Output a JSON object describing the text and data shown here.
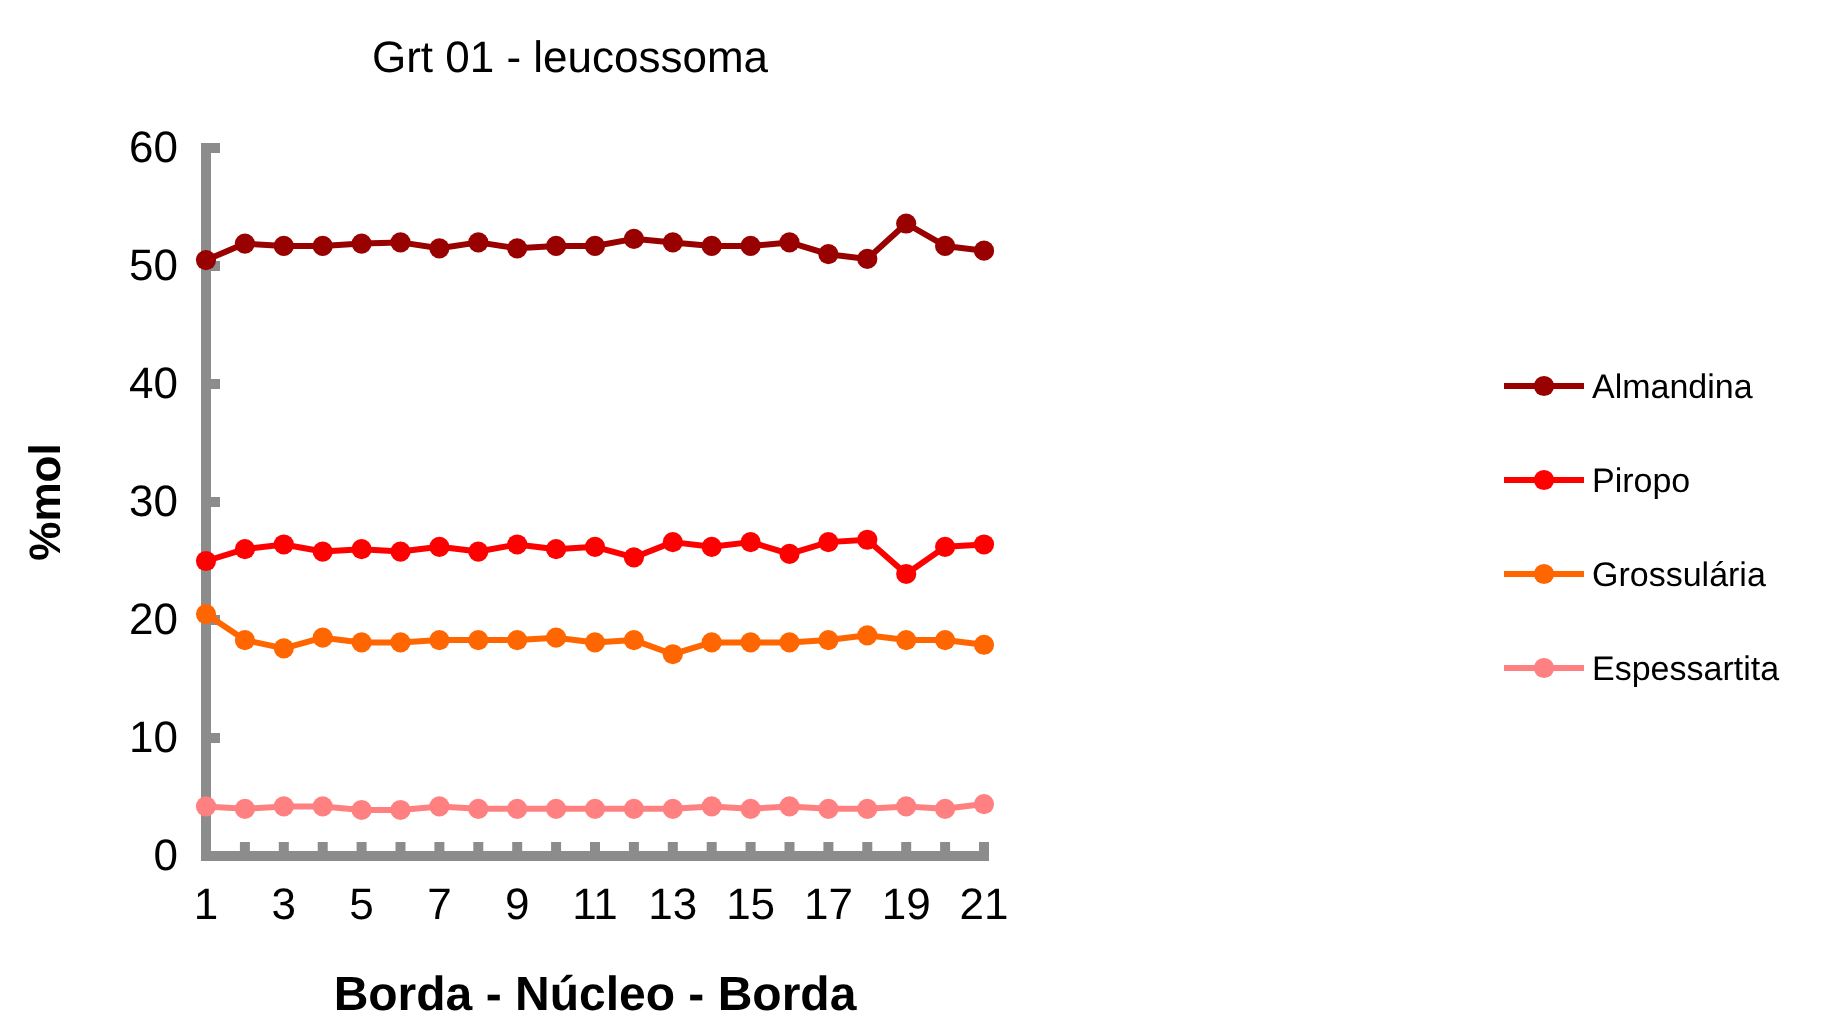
{
  "chart_data": {
    "type": "line",
    "title": "Grt 01 - leucossoma",
    "xlabel": "Borda - Núcleo - Borda",
    "ylabel": "%mol",
    "x": [
      1,
      2,
      3,
      4,
      5,
      6,
      7,
      8,
      9,
      10,
      11,
      12,
      13,
      14,
      15,
      16,
      17,
      18,
      19,
      20,
      21
    ],
    "xlim": [
      1,
      21
    ],
    "xticks": [
      1,
      {
        "value": 2,
        "label": null
      },
      3,
      {
        "value": 4,
        "label": null
      },
      5,
      {
        "value": 6,
        "label": null
      },
      7,
      {
        "value": 8,
        "label": null
      },
      9,
      {
        "value": 10,
        "label": null
      },
      11,
      {
        "value": 12,
        "label": null
      },
      13,
      {
        "value": 14,
        "label": null
      },
      15,
      {
        "value": 16,
        "label": null
      },
      17,
      {
        "value": 18,
        "label": null
      },
      19,
      {
        "value": 20,
        "label": null
      },
      21
    ],
    "ylim": [
      0,
      60
    ],
    "yticks": [
      0,
      10,
      20,
      30,
      40,
      50,
      60
    ],
    "grid": false,
    "legend": "right",
    "marker": "circle",
    "line_style": "solid",
    "series": [
      {
        "name": "Almandina",
        "color": "#990000",
        "values": [
          50.5,
          51.9,
          51.7,
          51.7,
          51.9,
          52.0,
          51.5,
          52.0,
          51.5,
          51.7,
          51.7,
          52.3,
          52.0,
          51.7,
          51.7,
          52.0,
          51.0,
          50.6,
          53.6,
          51.7,
          51.3
        ]
      },
      {
        "name": "Piropo",
        "color": "#ff0000",
        "values": [
          25.0,
          26.0,
          26.4,
          25.8,
          26.0,
          25.8,
          26.2,
          25.8,
          26.4,
          26.0,
          26.2,
          25.3,
          26.6,
          26.2,
          26.6,
          25.6,
          26.6,
          26.8,
          23.9,
          26.2,
          26.4
        ]
      },
      {
        "name": "Grossulária",
        "color": "#ff6600",
        "values": [
          20.5,
          18.3,
          17.6,
          18.5,
          18.1,
          18.1,
          18.3,
          18.3,
          18.3,
          18.5,
          18.1,
          18.3,
          17.1,
          18.1,
          18.1,
          18.1,
          18.3,
          18.7,
          18.3,
          18.3,
          17.9
        ]
      },
      {
        "name": "Espessartita",
        "color": "#ff8080",
        "values": [
          4.2,
          4.0,
          4.2,
          4.2,
          3.9,
          3.9,
          4.2,
          4.0,
          4.0,
          4.0,
          4.0,
          4.0,
          4.0,
          4.2,
          4.0,
          4.2,
          4.0,
          4.0,
          4.2,
          4.0,
          4.4
        ]
      }
    ]
  }
}
